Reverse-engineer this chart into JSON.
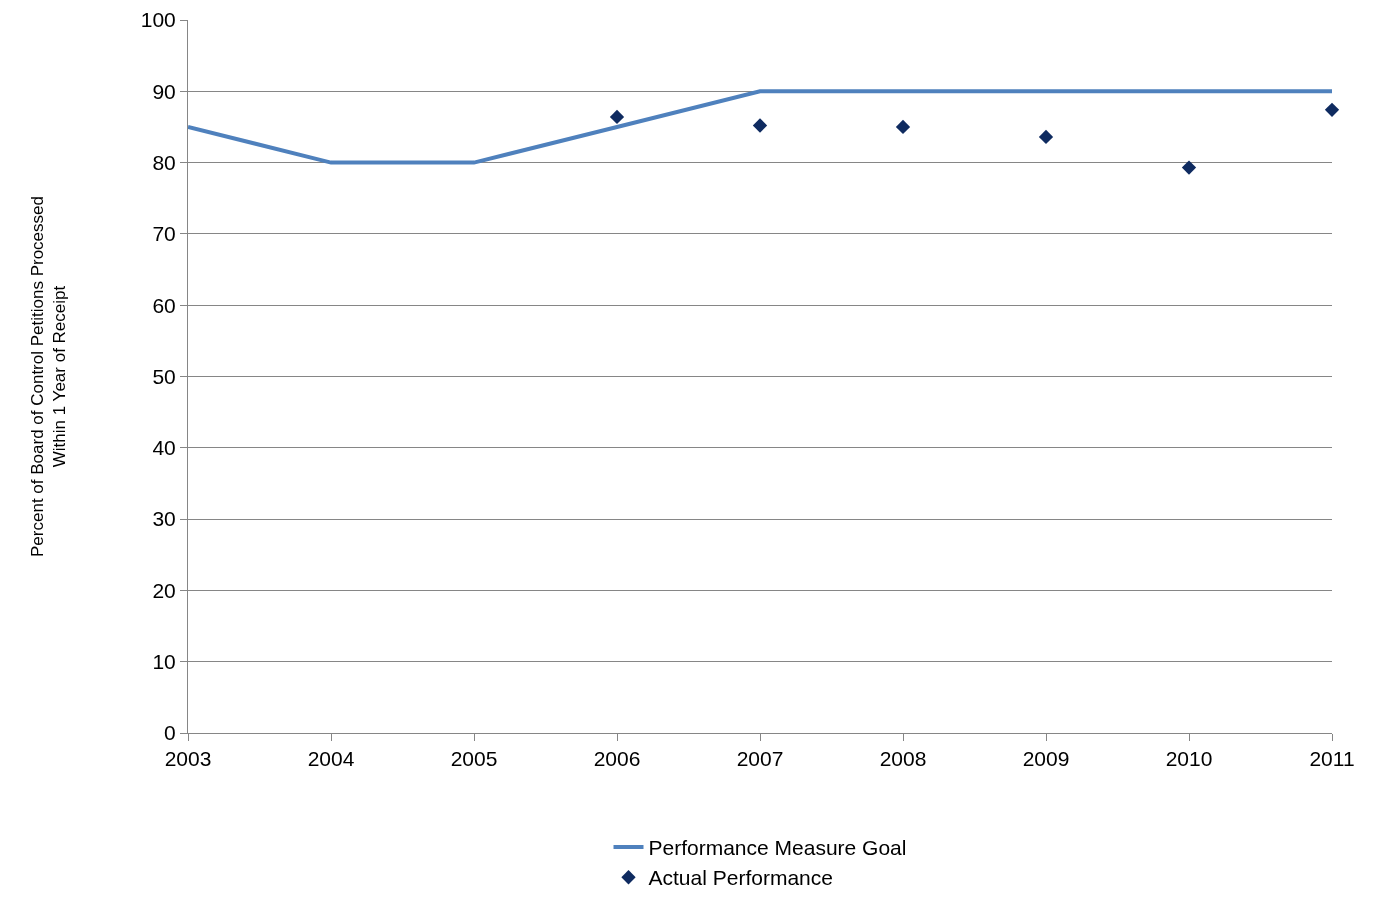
{
  "chart_data": {
    "type": "line",
    "ylabel": "Percent of Board of Control Petitions Processed\nWithin 1 Year of Receipt",
    "x": [
      2003,
      2004,
      2005,
      2006,
      2007,
      2008,
      2009,
      2010,
      2011
    ],
    "series": [
      {
        "name": "Performance Measure Goal",
        "color": "#4f81bd",
        "marker": "none",
        "values": [
          85,
          80,
          80,
          85,
          90,
          90,
          90,
          90,
          90
        ]
      },
      {
        "name": "Actual Performance",
        "type": "scatter",
        "color": "#0f2b60",
        "marker": "diamond",
        "values": [
          null,
          null,
          null,
          86.4,
          85.2,
          85.0,
          83.6,
          79.3,
          87.4
        ]
      }
    ],
    "xlim": [
      2003,
      2011
    ],
    "xticks": [
      2003,
      2004,
      2005,
      2006,
      2007,
      2008,
      2009,
      2010,
      2011
    ],
    "ylim": [
      0,
      100
    ],
    "yticks": [
      0,
      10,
      20,
      30,
      40,
      50,
      60,
      70,
      80,
      90,
      100
    ],
    "grid": "y",
    "legend": "bottom"
  }
}
